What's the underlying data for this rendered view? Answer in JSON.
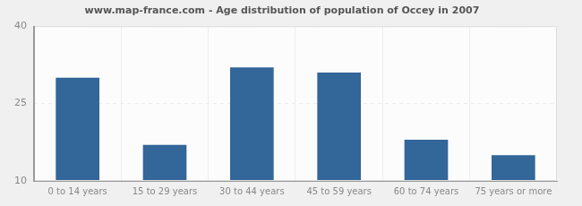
{
  "chart_data": {
    "type": "bar",
    "title": "www.map-france.com - Age distribution of population of Occey in 2007",
    "categories": [
      "0 to 14 years",
      "15 to 29 years",
      "30 to 44 years",
      "45 to 59 years",
      "60 to 74 years",
      "75 years or more"
    ],
    "values": [
      30,
      17,
      32,
      31,
      18,
      15
    ],
    "color": "#336699",
    "ylim": [
      10,
      40
    ],
    "yticks": [
      10,
      25,
      40
    ],
    "grid": true
  }
}
